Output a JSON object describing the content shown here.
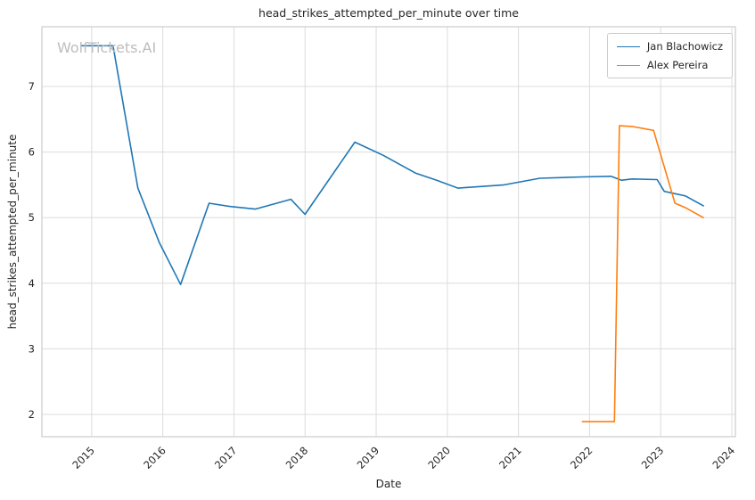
{
  "watermark": "WolfTickets.AI",
  "chart_data": {
    "type": "line",
    "title": "head_strikes_attempted_per_minute over time",
    "xlabel": "Date",
    "ylabel": "head_strikes_attempted_per_minute",
    "x_ticks": [
      2015,
      2016,
      2017,
      2018,
      2019,
      2020,
      2021,
      2022,
      2023,
      2024
    ],
    "y_ticks": [
      2,
      3,
      4,
      5,
      6,
      7
    ],
    "xlim": [
      2014.3,
      2024.05
    ],
    "ylim": [
      1.66,
      7.91
    ],
    "grid": true,
    "grid_color": "#dcdcdc",
    "spine_color": "#cccccc",
    "legend_position": "upper right",
    "series": [
      {
        "name": "Jan Blachowicz",
        "color": "#1f77b4",
        "points": [
          [
            2014.85,
            7.62
          ],
          [
            2015.3,
            7.62
          ],
          [
            2015.65,
            5.45
          ],
          [
            2015.95,
            4.62
          ],
          [
            2016.25,
            3.98
          ],
          [
            2016.65,
            5.22
          ],
          [
            2016.95,
            5.17
          ],
          [
            2017.3,
            5.13
          ],
          [
            2017.8,
            5.28
          ],
          [
            2018.0,
            5.05
          ],
          [
            2018.7,
            6.15
          ],
          [
            2019.1,
            5.95
          ],
          [
            2019.55,
            5.68
          ],
          [
            2019.85,
            5.57
          ],
          [
            2020.15,
            5.45
          ],
          [
            2020.8,
            5.5
          ],
          [
            2021.3,
            5.6
          ],
          [
            2021.9,
            5.62
          ],
          [
            2022.3,
            5.63
          ],
          [
            2022.45,
            5.57
          ],
          [
            2022.6,
            5.59
          ],
          [
            2022.95,
            5.58
          ],
          [
            2023.05,
            5.4
          ],
          [
            2023.35,
            5.33
          ],
          [
            2023.6,
            5.18
          ]
        ]
      },
      {
        "name": "Alex Pereira",
        "color": "#ff7f0e",
        "points": [
          [
            2021.9,
            1.89
          ],
          [
            2022.35,
            1.89
          ],
          [
            2022.42,
            6.4
          ],
          [
            2022.6,
            6.39
          ],
          [
            2022.9,
            6.33
          ],
          [
            2023.2,
            5.22
          ],
          [
            2023.35,
            5.15
          ],
          [
            2023.6,
            5.0
          ]
        ]
      }
    ]
  }
}
